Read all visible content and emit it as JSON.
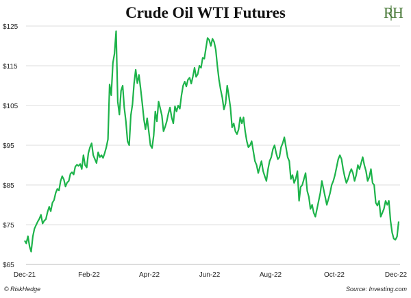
{
  "title": "Crude Oil WTI Futures",
  "footer": {
    "copyright": "© RiskHedge",
    "source": "Source: Investing.com"
  },
  "logo": {
    "text": "RH",
    "color": "#4a7a3a"
  },
  "chart_data": {
    "type": "line",
    "title": "Crude Oil WTI Futures",
    "xlabel": "",
    "ylabel": "",
    "ylim": [
      65,
      125
    ],
    "ytick_values": [
      65,
      75,
      85,
      95,
      105,
      115,
      125
    ],
    "ytick_labels": [
      "$65",
      "$75",
      "$85",
      "$95",
      "$105",
      "$115",
      "$125"
    ],
    "xtick_labels": [
      "Dec-21",
      "Feb-22",
      "Apr-22",
      "Jun-22",
      "Aug-22",
      "Oct-22",
      "Dec-22"
    ],
    "grid": true,
    "line_color": "#1db34a",
    "series": [
      {
        "values": [
          71.0,
          70.3,
          72.1,
          69.5,
          68.2,
          72.0,
          74.0,
          74.9,
          75.8,
          76.5,
          77.5,
          75.3,
          76.0,
          76.4,
          78.2,
          79.5,
          78.4,
          80.5,
          81.2,
          83.0,
          84.0,
          83.6,
          86.0,
          87.2,
          86.4,
          84.6,
          85.6,
          86.0,
          87.8,
          88.2,
          87.6,
          89.6,
          90.1,
          89.8,
          90.3,
          89.0,
          92.5,
          90.0,
          89.4,
          93.0,
          94.5,
          95.5,
          92.5,
          91.5,
          90.5,
          93.2,
          92.0,
          92.5,
          91.8,
          93.0,
          94.5,
          96.5,
          110.3,
          107.6,
          115.7,
          118.0,
          123.7,
          106.0,
          102.7,
          108.7,
          110.0,
          104.5,
          101.0,
          96.0,
          95.0,
          102.5,
          105.3,
          110.5,
          114.0,
          110.6,
          112.7,
          109.2,
          105.5,
          101.5,
          99.0,
          101.8,
          98.5,
          95.0,
          94.3,
          97.5,
          103.5,
          101.0,
          106.0,
          104.3,
          102.5,
          98.5,
          99.6,
          101.0,
          103.0,
          104.5,
          102.0,
          100.5,
          104.8,
          103.5,
          105.0,
          104.2,
          107.5,
          110.0,
          111.0,
          109.8,
          111.5,
          112.0,
          110.5,
          112.3,
          114.5,
          112.2,
          112.9,
          115.0,
          114.5,
          117.0,
          116.8,
          119.5,
          122.0,
          121.5,
          120.0,
          121.8,
          121.0,
          119.0,
          115.0,
          111.5,
          109.0,
          107.0,
          104.0,
          105.5,
          110.0,
          107.5,
          104.5,
          99.5,
          100.5,
          98.5,
          97.8,
          99.0,
          102.0,
          100.5,
          102.0,
          98.5,
          96.0,
          94.5,
          95.0,
          96.0,
          93.5,
          91.0,
          90.0,
          88.0,
          89.5,
          91.0,
          88.5,
          87.2,
          86.0,
          89.0,
          91.0,
          92.0,
          94.0,
          95.0,
          93.0,
          91.5,
          92.0,
          94.5,
          95.5,
          97.0,
          94.5,
          92.0,
          91.0,
          86.5,
          87.5,
          85.5,
          86.6,
          88.5,
          81.0,
          84.5,
          85.0,
          86.5,
          88.0,
          83.5,
          82.0,
          79.0,
          80.0,
          78.0,
          77.0,
          79.0,
          81.0,
          83.0,
          86.0,
          84.0,
          82.0,
          80.0,
          81.5,
          83.0,
          85.0,
          86.0,
          87.5,
          89.5,
          91.5,
          92.5,
          91.5,
          89.0,
          87.0,
          85.5,
          86.5,
          88.0,
          89.0,
          88.0,
          86.0,
          87.5,
          90.0,
          89.0,
          90.5,
          92.0,
          90.0,
          88.5,
          86.0,
          87.0,
          89.0,
          85.5,
          85.0,
          80.5,
          79.8,
          81.0,
          77.0,
          78.0,
          79.0,
          81.0,
          80.0,
          81.0,
          76.0,
          73.0,
          71.5,
          71.2,
          72.0,
          75.8
        ]
      }
    ]
  }
}
